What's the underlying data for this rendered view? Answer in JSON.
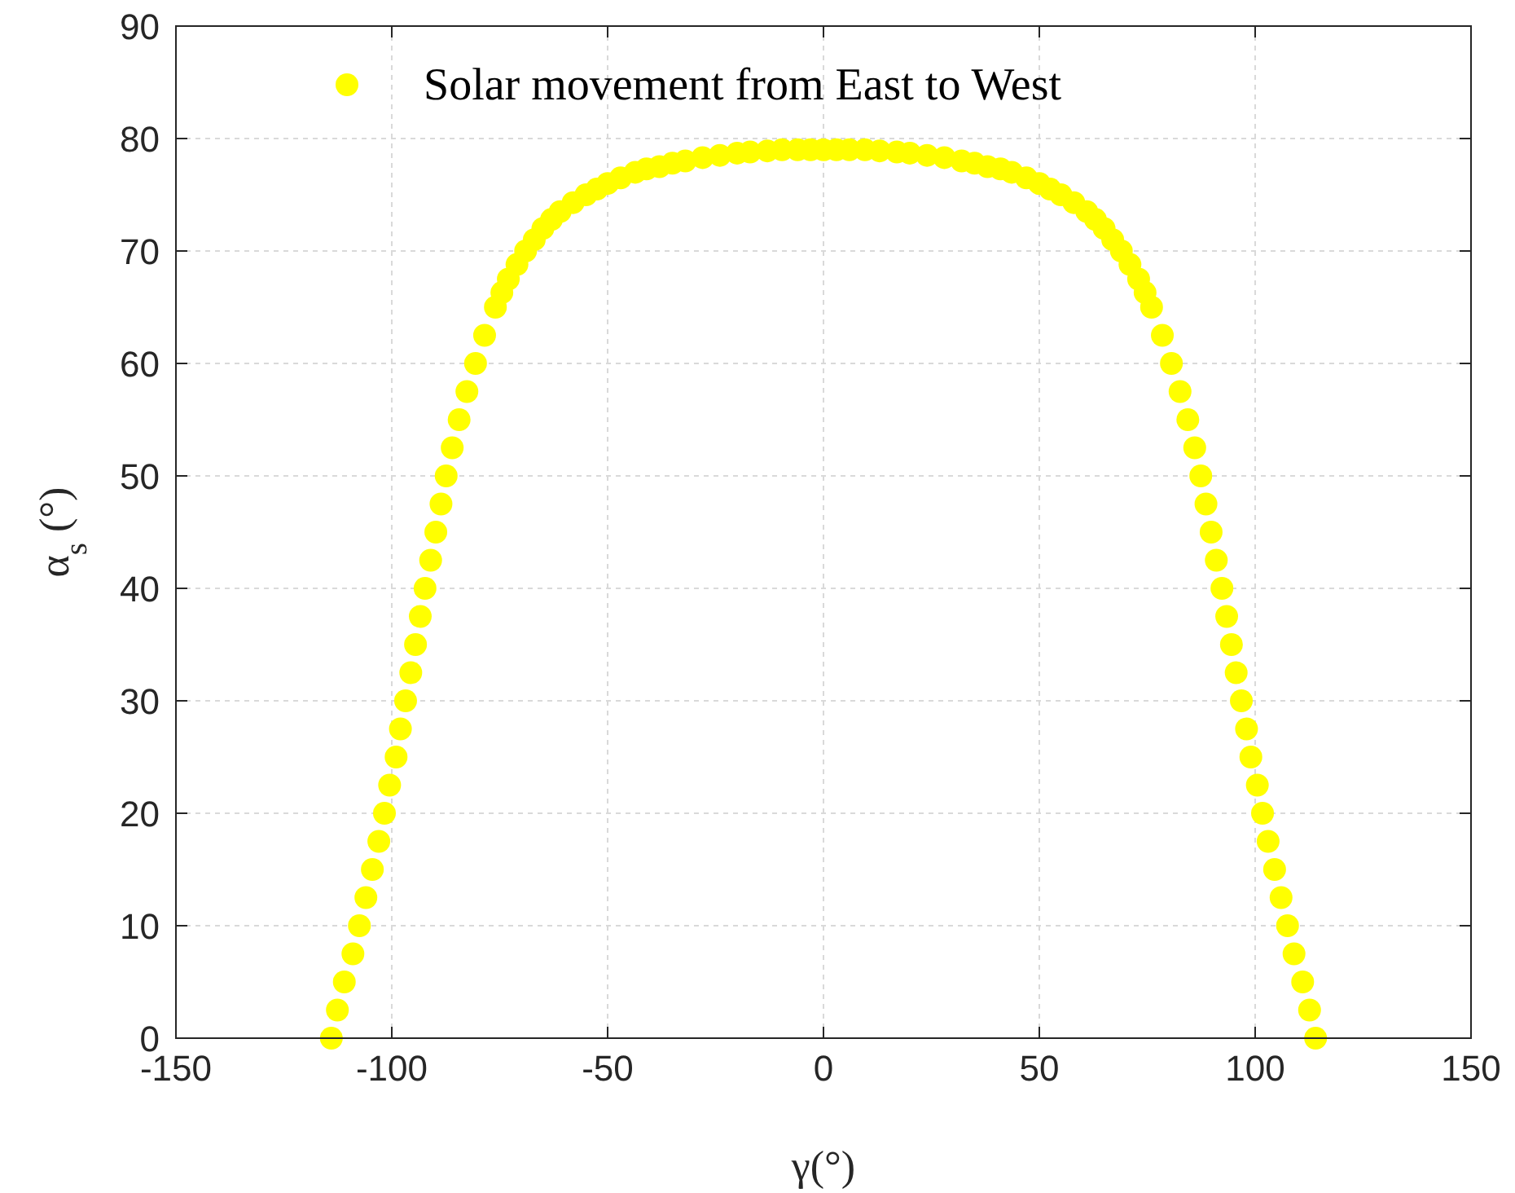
{
  "chart_data": {
    "type": "scatter",
    "xlabel": "γ(°)",
    "ylabel": "α$_{s}$ (°)",
    "xlim": [
      -150,
      150
    ],
    "xticks": [
      -150,
      -100,
      -50,
      0,
      50,
      100,
      150
    ],
    "ylim": [
      0,
      90
    ],
    "yticks": [
      0,
      10,
      20,
      30,
      40,
      50,
      60,
      70,
      80,
      90
    ],
    "grid": true,
    "legend": "top",
    "marker": "circle",
    "series": [
      {
        "name": "Solar movement from East to West",
        "color": "#ffff00",
        "x": [
          -114,
          -112.6,
          -111,
          -109,
          -107.5,
          -106,
          -104.5,
          -103,
          -101.7,
          -100.5,
          -99,
          -98,
          -96.8,
          -95.6,
          -94.5,
          -93.4,
          -92.3,
          -91,
          -89.8,
          -88.6,
          -87.4,
          -86,
          -84.4,
          -82.6,
          -80.6,
          -78.5,
          -76,
          -74.5,
          -73,
          -71,
          -69,
          -67,
          -65,
          -63,
          -61,
          -58,
          -55,
          -52.5,
          -50,
          -47,
          -43.6,
          -41,
          -38,
          -35,
          -32,
          -28,
          -24,
          -20,
          -17,
          -13,
          -9.6,
          -6,
          -3,
          0,
          3,
          6,
          9.6,
          13,
          17,
          20,
          24,
          28,
          32,
          35,
          38,
          41,
          43.6,
          47,
          50,
          52.5,
          55,
          58,
          61,
          63,
          65,
          67,
          69,
          71,
          73,
          74.5,
          76,
          78.5,
          80.6,
          82.6,
          84.4,
          86,
          87.4,
          88.6,
          89.8,
          91,
          92.3,
          93.4,
          94.5,
          95.6,
          96.8,
          98,
          99,
          100.5,
          101.7,
          103,
          104.5,
          106,
          107.5,
          109,
          111,
          112.6,
          114
        ],
        "values": [
          0,
          2.5,
          5,
          7.5,
          10,
          12.5,
          15,
          17.5,
          20,
          22.5,
          25,
          27.5,
          30,
          32.5,
          35,
          37.5,
          40,
          42.5,
          45,
          47.5,
          50,
          52.5,
          55,
          57.5,
          60,
          62.5,
          65,
          66.3,
          67.5,
          68.8,
          70,
          71,
          72,
          72.8,
          73.5,
          74.3,
          75,
          75.5,
          76,
          76.5,
          77,
          77.3,
          77.5,
          77.8,
          78,
          78.3,
          78.5,
          78.7,
          78.8,
          78.9,
          79,
          79,
          79,
          79,
          79,
          79,
          79,
          78.9,
          78.8,
          78.7,
          78.5,
          78.3,
          78,
          77.8,
          77.5,
          77.3,
          77,
          76.5,
          76,
          75.5,
          75,
          74.3,
          73.5,
          72.8,
          72,
          71,
          70,
          68.8,
          67.5,
          66.3,
          65,
          62.5,
          60,
          57.5,
          55,
          52.5,
          50,
          47.5,
          45,
          42.5,
          40,
          37.5,
          35,
          32.5,
          30,
          27.5,
          25,
          22.5,
          20,
          17.5,
          15,
          12.5,
          10,
          7.5,
          5,
          2.5,
          0
        ]
      }
    ]
  }
}
